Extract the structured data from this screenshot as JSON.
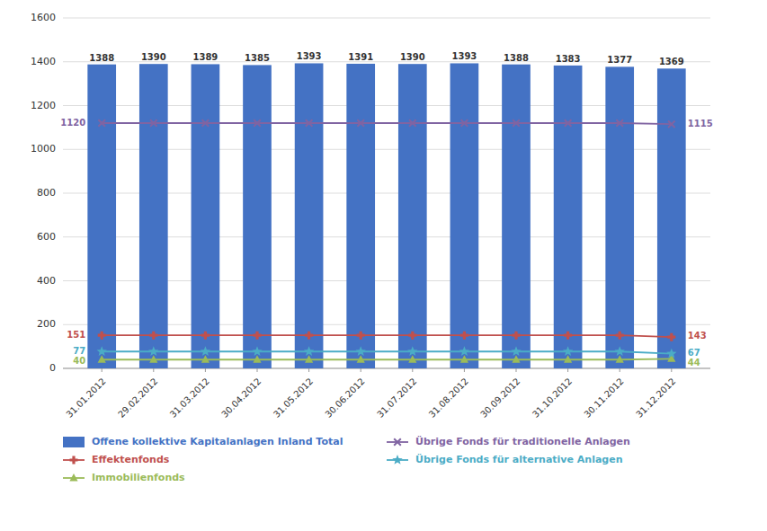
{
  "chart_data": {
    "type": "bar",
    "categories": [
      "31.01.2012",
      "29.02.2012",
      "31.03.2012",
      "30.04.2012",
      "31.05.2012",
      "30.06.2012",
      "31.07.2012",
      "31.08.2012",
      "30.09.2012",
      "31.10.2012",
      "30.11.2012",
      "31.12.2012"
    ],
    "series": [
      {
        "name": "Offene kollektive Kapitalanlagen Inland Total",
        "type": "bar",
        "color": "#4472C4",
        "values": [
          1388,
          1390,
          1389,
          1385,
          1393,
          1391,
          1390,
          1393,
          1388,
          1383,
          1377,
          1369
        ]
      },
      {
        "name": "Effektenfonds",
        "type": "line",
        "color": "#C0504D",
        "marker": "plus",
        "values": [
          151,
          151,
          151,
          151,
          151,
          151,
          151,
          151,
          151,
          151,
          151,
          143
        ]
      },
      {
        "name": "Immobilienfonds",
        "type": "line",
        "color": "#9BBB59",
        "marker": "triangle",
        "values": [
          40,
          40,
          40,
          40,
          40,
          40,
          40,
          40,
          40,
          40,
          40,
          44
        ]
      },
      {
        "name": "Übrige Fonds für traditionelle Anlagen",
        "type": "line",
        "color": "#8064A2",
        "marker": "x",
        "values": [
          1120,
          1120,
          1120,
          1120,
          1120,
          1120,
          1120,
          1120,
          1120,
          1120,
          1120,
          1115
        ]
      },
      {
        "name": "Übrige Fonds für alternative Anlagen",
        "type": "line",
        "color": "#4BACC6",
        "marker": "star",
        "values": [
          77,
          77,
          77,
          77,
          77,
          77,
          77,
          77,
          77,
          77,
          77,
          67
        ]
      }
    ],
    "ylim": [
      0,
      1600
    ],
    "yticks": [
      0,
      200,
      400,
      600,
      800,
      1000,
      1200,
      1400,
      1600
    ],
    "grid": true,
    "legend": "bottom",
    "data_labels": true
  }
}
